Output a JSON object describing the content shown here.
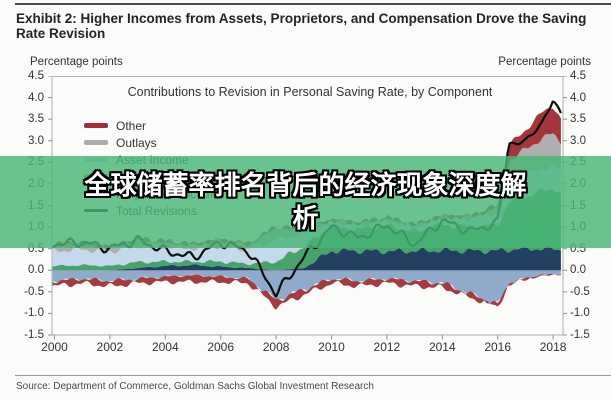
{
  "page": {
    "exhibit_title": "Exhibit 2: Higher Incomes from Assets, Proprietors, and Compensation Drove the Saving Rate Revision",
    "source_note": "Source: Department of Commerce, Goldman Sachs Global Investment Research"
  },
  "axis": {
    "left_unit_label": "Percentage points",
    "right_unit_label": "Percentage points",
    "y_ticks": [
      "4.5",
      "4.0",
      "3.5",
      "3.0",
      "2.5",
      "2.0",
      "1.5",
      "1.0",
      "0.5",
      "0.0",
      "-0.5",
      "-1.0",
      "-1.5"
    ],
    "x_ticks": [
      "2000",
      "2002",
      "2004",
      "2006",
      "2008",
      "2010",
      "2012",
      "2014",
      "2016",
      "2018"
    ]
  },
  "overlay": {
    "line1": "全球储蓄率排名背后的经济现象深度解",
    "line2": "析",
    "band_color": "rgba(72,182,118,0.82)"
  },
  "chart_data": {
    "type": "area",
    "title": "Contributions to Revision in Personal Saving Rate, by Component",
    "xlabel": "",
    "ylabel": "Percentage points",
    "ylim": [
      -1.5,
      4.5
    ],
    "xlim": [
      1999.9,
      2018.35
    ],
    "grid": "zero-line-only",
    "legend_position": "upper-left",
    "legend": [
      {
        "label": "Other",
        "color": "#a03036",
        "type": "area"
      },
      {
        "label": "Outlays",
        "color": "#ababab",
        "type": "area"
      },
      {
        "label": "Asset Income",
        "color": "#c2d8ea",
        "type": "area"
      },
      {
        "label": "Compensation",
        "color": "#41a066",
        "type": "area"
      },
      {
        "label": "Proprietors' Income",
        "color": "#1c3a5e",
        "type": "area"
      },
      {
        "label": "Total Revisions",
        "color": "#0d0d0d",
        "type": "line"
      }
    ],
    "x": [
      2000,
      2001,
      2002,
      2003,
      2004,
      2005,
      2006,
      2007,
      2008,
      2009,
      2010,
      2011,
      2012,
      2013,
      2014,
      2015,
      2016,
      2016.4,
      2017,
      2017.6,
      2018,
      2018.3
    ],
    "series": [
      {
        "name": "Proprietors' Income",
        "color": "#1c3a5e",
        "neg_color": "#8aa6c6",
        "pos": [
          0,
          0,
          0,
          0.05,
          0.1,
          0.12,
          0.08,
          0.05,
          0,
          0.05,
          0.45,
          0.45,
          0.44,
          0.45,
          0.46,
          0.45,
          0.45,
          0.48,
          0.5,
          0.5,
          0.5,
          0.48
        ],
        "neg": [
          -0.25,
          -0.2,
          -0.25,
          -0.2,
          -0.15,
          -0.12,
          -0.15,
          -0.2,
          -0.7,
          -0.45,
          -0.2,
          -0.25,
          -0.2,
          -0.25,
          -0.3,
          -0.55,
          -0.8,
          -0.3,
          -0.2,
          -0.12,
          -0.1,
          -0.1
        ]
      },
      {
        "name": "Compensation",
        "color": "#41a066",
        "pos": [
          0.1,
          0.12,
          0.1,
          0.14,
          0.1,
          0.08,
          0.12,
          0.1,
          0.2,
          0.5,
          0.55,
          0.5,
          0.6,
          0.45,
          0.6,
          0.55,
          0.6,
          1.1,
          1.2,
          1.35,
          1.4,
          1.3
        ],
        "neg": [
          0,
          0,
          0,
          0,
          0,
          0,
          0,
          0,
          0,
          0,
          0,
          0,
          0,
          0,
          0,
          0,
          0,
          0,
          0,
          0,
          0,
          0
        ]
      },
      {
        "name": "Asset Income",
        "color": "#c2d8ea",
        "pos": [
          0.35,
          0.36,
          0.33,
          0.38,
          0.34,
          0.3,
          0.36,
          0.33,
          0.5,
          0.3,
          0.12,
          0.1,
          0.12,
          0.1,
          0.15,
          0.2,
          0.3,
          0.45,
          0.5,
          0.5,
          0.52,
          0.5
        ],
        "neg": [
          0,
          0,
          0,
          0,
          0,
          0,
          0,
          0,
          0,
          0,
          0,
          0,
          0,
          0,
          0,
          0,
          0,
          0,
          0,
          0,
          0,
          0
        ]
      },
      {
        "name": "Outlays",
        "color": "#ababab",
        "pos": [
          0.15,
          0.15,
          0.12,
          0.15,
          0.12,
          0.1,
          0.15,
          0.12,
          0.3,
          0.1,
          0.05,
          0.05,
          0.05,
          0.05,
          0.05,
          0.05,
          0.1,
          0.5,
          0.6,
          0.7,
          0.75,
          0.68
        ],
        "neg": [
          0,
          0,
          0,
          0,
          0,
          0,
          0,
          0,
          0,
          0,
          0,
          0,
          0,
          0,
          0,
          0,
          0,
          0,
          0,
          0,
          0,
          0
        ]
      },
      {
        "name": "Other",
        "color": "#a03036",
        "neg_color": "#a03036",
        "pos": [
          0,
          0,
          0,
          0,
          0,
          0,
          0,
          0,
          0,
          0,
          0,
          0,
          0,
          0,
          0,
          0,
          0.05,
          0.35,
          0.45,
          0.6,
          0.65,
          0.5
        ],
        "neg": [
          -0.12,
          -0.1,
          -0.12,
          -0.1,
          -0.12,
          -0.15,
          -0.12,
          -0.1,
          -0.15,
          -0.12,
          -0.1,
          -0.12,
          -0.1,
          -0.12,
          -0.1,
          -0.08,
          -0.05,
          -0.04,
          0,
          0,
          0,
          0
        ]
      }
    ],
    "total_line": {
      "name": "Total Revisions",
      "color": "#0d0d0d",
      "values": [
        0.6,
        0.65,
        0.5,
        0.7,
        0.45,
        0.3,
        0.65,
        0.45,
        -0.55,
        0.3,
        1.0,
        0.75,
        1.05,
        0.6,
        1.15,
        0.9,
        1.1,
        2.9,
        3.0,
        3.4,
        3.95,
        3.6
      ]
    }
  }
}
